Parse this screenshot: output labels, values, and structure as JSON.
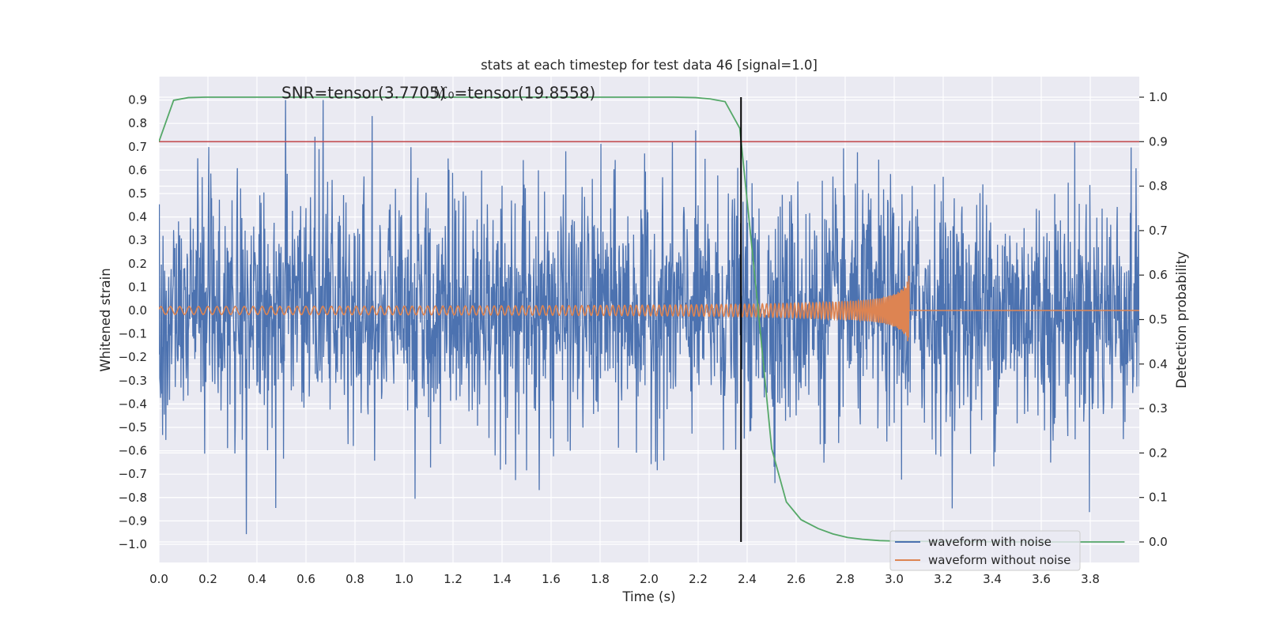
{
  "chart_data": {
    "type": "line",
    "title": "stats at each timestep for test data 46 [signal=1.0]",
    "xlabel": "Time (s)",
    "ylabel": "Whitened strain",
    "y2label": "Detection probability",
    "xlim": [
      0.0,
      4.0
    ],
    "ylim": [
      -1.09,
      1.0
    ],
    "y2lim": [
      -0.05,
      1.04
    ],
    "x_ticks": [
      "0.0",
      "0.2",
      "0.4",
      "0.6",
      "0.8",
      "1.0",
      "1.2",
      "1.4",
      "1.6",
      "1.8",
      "2.0",
      "2.2",
      "2.4",
      "2.6",
      "2.8",
      "3.0",
      "3.2",
      "3.4",
      "3.6",
      "3.8"
    ],
    "y_ticks": [
      "0.9",
      "0.8",
      "0.7",
      "0.6",
      "0.5",
      "0.4",
      "0.3",
      "0.2",
      "0.1",
      "0.0",
      "−0.1",
      "−0.2",
      "−0.3",
      "−0.4",
      "−0.5",
      "−0.6",
      "−0.7",
      "−0.8",
      "−0.9",
      "−1.0"
    ],
    "y2_ticks": [
      "1.0",
      "0.9",
      "0.8",
      "0.7",
      "0.6",
      "0.5",
      "0.4",
      "0.3",
      "0.2",
      "0.1",
      "0.0"
    ],
    "annotations": [
      {
        "text": "SNR=tensor(3.7705)",
        "x": 0.5,
        "y": 0.93
      },
      {
        "text": "ℳ₀=tensor(19.8558)",
        "x": 1.11,
        "y": 0.93
      }
    ],
    "threshold_y2": 0.9,
    "vline_x": 2.375,
    "grid": true,
    "legend_position": "lower right",
    "series": [
      {
        "name": "waveform with noise",
        "color": "#4c72b0",
        "axis": "left",
        "kind": "noise",
        "duration_s": 4.0,
        "amplitude_typical": 0.3,
        "peak_max": 0.9,
        "peak_min": -1.0
      },
      {
        "name": "waveform without noise",
        "color": "#dd8452",
        "axis": "left",
        "kind": "chirp",
        "t_start": 0.0,
        "t_merger": 3.06,
        "amplitude_start": 0.01,
        "amplitude_peak": 0.15
      },
      {
        "name": "",
        "color": "#55a868",
        "axis": "right",
        "x": [
          0.0,
          0.06,
          0.12,
          0.19,
          0.25,
          0.5,
          1.0,
          1.5,
          1.9,
          2.1,
          2.19,
          2.25,
          2.31,
          2.37,
          2.44,
          2.5,
          2.56,
          2.62,
          2.69,
          2.75,
          2.81,
          2.87,
          2.94,
          3.0,
          3.2,
          3.5,
          3.8,
          3.94
        ],
        "y": [
          0.9,
          0.993,
          0.999,
          1.0,
          1.0,
          1.0,
          1.0,
          1.0,
          1.0,
          1.0,
          0.999,
          0.996,
          0.99,
          0.93,
          0.55,
          0.21,
          0.09,
          0.05,
          0.03,
          0.018,
          0.01,
          0.006,
          0.003,
          0.002,
          0.001,
          0.0,
          0.0,
          0.0
        ]
      }
    ],
    "threshold_color": "#c44e52",
    "vline_color": "#000000",
    "background_color": "#eaeaf2",
    "grid_color": "#ffffff"
  }
}
